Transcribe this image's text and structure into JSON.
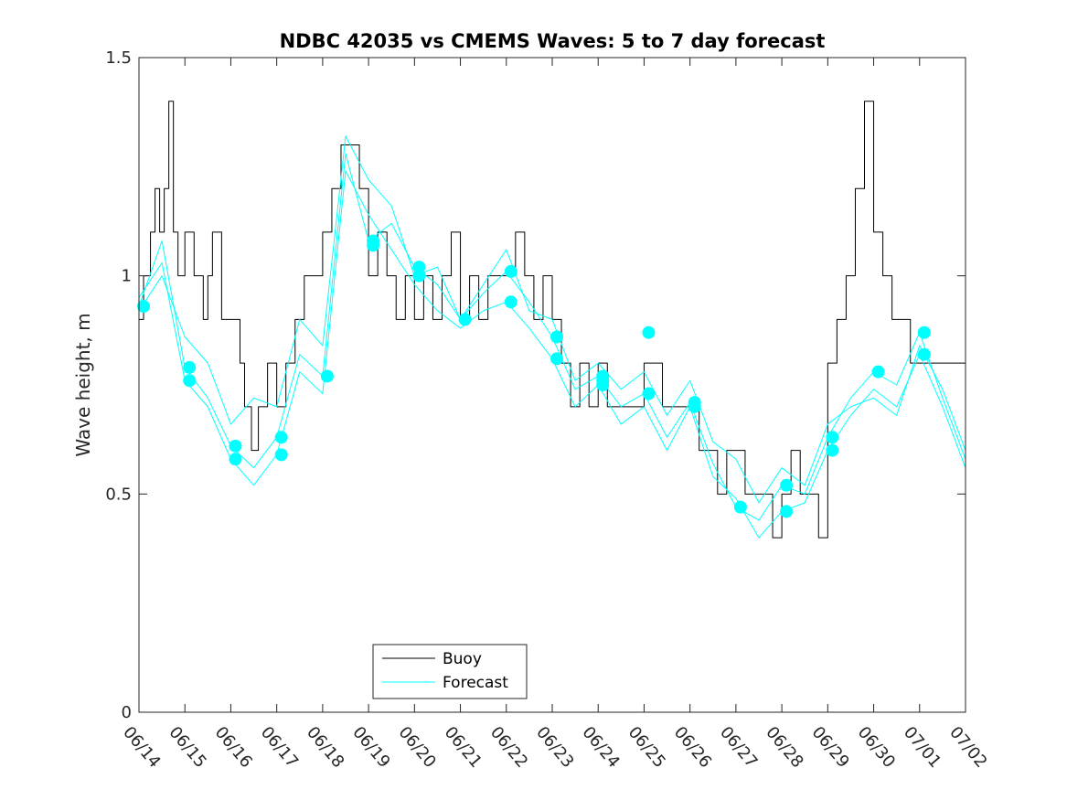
{
  "chart_data": {
    "type": "line",
    "title": "NDBC 42035 vs CMEMS Waves: 5 to 7 day forecast",
    "xlabel": "",
    "ylabel": "Wave height, m",
    "xlim": [
      0,
      18
    ],
    "ylim": [
      0,
      1.5
    ],
    "x_unit": "days since 06/14 00:00",
    "xticks": [
      0,
      1,
      2,
      3,
      4,
      5,
      6,
      7,
      8,
      9,
      10,
      11,
      12,
      13,
      14,
      15,
      16,
      17,
      18
    ],
    "xtick_labels": [
      "06/14",
      "06/15",
      "06/16",
      "06/17",
      "06/18",
      "06/19",
      "06/20",
      "06/21",
      "06/22",
      "06/23",
      "06/24",
      "06/25",
      "06/26",
      "06/27",
      "06/28",
      "06/29",
      "06/30",
      "07/01",
      "07/02"
    ],
    "yticks": [
      0,
      0.5,
      1,
      1.5
    ],
    "ytick_labels": [
      "0",
      "0.5",
      "1",
      "1.5"
    ],
    "grid": false,
    "legend_position": "bottom-center",
    "colors": {
      "buoy": "#000000",
      "forecast": "#00ffff"
    },
    "series": [
      {
        "name": "Buoy",
        "style": "step",
        "color": "#000000",
        "x": [
          0.0,
          0.1,
          0.25,
          0.35,
          0.45,
          0.55,
          0.65,
          0.75,
          0.85,
          1.0,
          1.2,
          1.4,
          1.5,
          1.6,
          1.8,
          2.0,
          2.2,
          2.3,
          2.45,
          2.6,
          2.8,
          3.0,
          3.2,
          3.4,
          3.6,
          3.8,
          4.0,
          4.2,
          4.4,
          4.6,
          4.8,
          5.0,
          5.2,
          5.4,
          5.6,
          5.8,
          6.0,
          6.2,
          6.4,
          6.6,
          6.8,
          7.0,
          7.2,
          7.4,
          7.6,
          7.8,
          8.0,
          8.2,
          8.4,
          8.6,
          8.8,
          9.0,
          9.2,
          9.4,
          9.6,
          9.8,
          10.0,
          10.2,
          10.4,
          10.6,
          10.8,
          11.0,
          11.2,
          11.4,
          11.6,
          11.8,
          12.0,
          12.2,
          12.4,
          12.6,
          12.8,
          13.0,
          13.2,
          13.4,
          13.6,
          13.8,
          14.0,
          14.2,
          14.4,
          14.6,
          14.8,
          15.0,
          15.2,
          15.4,
          15.6,
          15.8,
          16.0,
          16.2,
          16.4,
          16.6,
          16.8,
          17.0,
          17.2,
          17.4,
          17.6,
          17.8,
          18.0
        ],
        "y": [
          0.9,
          1.0,
          1.1,
          1.2,
          1.1,
          1.2,
          1.4,
          1.1,
          1.0,
          1.1,
          1.0,
          0.9,
          1.0,
          1.1,
          0.9,
          0.9,
          0.8,
          0.7,
          0.6,
          0.7,
          0.8,
          0.7,
          0.8,
          0.9,
          1.0,
          1.0,
          1.1,
          1.2,
          1.3,
          1.3,
          1.2,
          1.0,
          1.1,
          1.0,
          0.9,
          1.0,
          0.9,
          1.0,
          0.9,
          1.0,
          1.1,
          0.9,
          1.0,
          0.9,
          1.0,
          1.0,
          1.0,
          1.1,
          1.0,
          0.9,
          1.0,
          0.9,
          0.8,
          0.7,
          0.8,
          0.7,
          0.8,
          0.7,
          0.7,
          0.7,
          0.7,
          0.8,
          0.8,
          0.7,
          0.7,
          0.7,
          0.7,
          0.6,
          0.6,
          0.5,
          0.6,
          0.6,
          0.5,
          0.5,
          0.5,
          0.4,
          0.5,
          0.6,
          0.5,
          0.5,
          0.4,
          0.8,
          0.9,
          1.0,
          1.2,
          1.4,
          1.1,
          1.0,
          0.9,
          0.9,
          0.8,
          0.8,
          0.8,
          0.8,
          0.8,
          0.8,
          0.8
        ]
      },
      {
        "name": "Forecast",
        "style": "line",
        "color": "#00ffff",
        "x": [
          0.0,
          0.5,
          1.0,
          1.5,
          2.0,
          2.5,
          3.0,
          3.5,
          4.0,
          4.5,
          5.0,
          5.5,
          6.0,
          6.5,
          7.0,
          7.5,
          8.0,
          8.5,
          9.0,
          9.5,
          10.0,
          10.5,
          11.0,
          11.5,
          12.0,
          12.5,
          13.0,
          13.5,
          14.0,
          14.5,
          15.0,
          15.5,
          16.0,
          16.5,
          17.0,
          17.5,
          18.0
        ],
        "y": [
          0.93,
          1.08,
          0.79,
          0.72,
          0.61,
          0.56,
          0.63,
          0.82,
          0.77,
          1.28,
          1.08,
          1.12,
          1.02,
          0.98,
          0.9,
          0.96,
          1.01,
          0.94,
          0.86,
          0.74,
          0.77,
          0.7,
          0.73,
          0.63,
          0.71,
          0.57,
          0.47,
          0.44,
          0.52,
          0.5,
          0.63,
          0.72,
          0.78,
          0.75,
          0.87,
          0.72,
          0.58
        ]
      },
      {
        "name": "Forecast",
        "style": "line",
        "color": "#00ffff",
        "x": [
          0.0,
          0.5,
          1.0,
          1.5,
          2.0,
          2.5,
          3.0,
          3.5,
          4.0,
          4.5,
          5.0,
          5.5,
          6.0,
          6.5,
          7.0,
          7.5,
          8.0,
          8.5,
          9.0,
          9.5,
          10.0,
          10.5,
          11.0,
          11.5,
          12.0,
          12.5,
          13.0,
          13.5,
          14.0,
          14.5,
          15.0,
          15.5,
          16.0,
          16.5,
          17.0,
          17.5,
          18.0
        ],
        "y": [
          0.95,
          1.03,
          0.76,
          0.7,
          0.58,
          0.52,
          0.59,
          0.78,
          0.73,
          1.24,
          1.14,
          1.06,
          0.98,
          0.92,
          0.88,
          0.92,
          0.94,
          0.88,
          0.81,
          0.7,
          0.75,
          0.66,
          0.7,
          0.6,
          0.7,
          0.54,
          0.49,
          0.4,
          0.46,
          0.48,
          0.6,
          0.68,
          0.74,
          0.7,
          0.82,
          0.7,
          0.56
        ]
      },
      {
        "name": "Forecast",
        "style": "line",
        "color": "#00ffff",
        "x": [
          0.0,
          0.5,
          1.0,
          1.5,
          2.0,
          2.5,
          3.0,
          3.5,
          4.0,
          4.5,
          5.0,
          5.5,
          6.0,
          6.5,
          7.0,
          7.5,
          8.0,
          8.5,
          9.0,
          9.5,
          10.0,
          10.5,
          11.0,
          11.5,
          12.0,
          12.5,
          13.0,
          13.5,
          14.0,
          14.5,
          15.0,
          15.5,
          16.0,
          16.5,
          17.0,
          17.5,
          18.0
        ],
        "y": [
          0.92,
          1.0,
          0.86,
          0.8,
          0.66,
          0.72,
          0.7,
          0.9,
          0.84,
          1.32,
          1.22,
          1.16,
          1.0,
          1.02,
          0.9,
          0.98,
          1.06,
          0.92,
          0.9,
          0.76,
          0.8,
          0.74,
          0.78,
          0.68,
          0.76,
          0.62,
          0.58,
          0.48,
          0.56,
          0.52,
          0.66,
          0.7,
          0.72,
          0.68,
          0.84,
          0.74,
          0.6
        ]
      }
    ],
    "forecast_markers": {
      "name": "Forecast",
      "color": "#00ffff",
      "x": [
        0.1,
        1.1,
        1.1,
        2.1,
        2.1,
        3.1,
        3.1,
        4.1,
        5.1,
        5.1,
        6.1,
        6.1,
        7.1,
        8.1,
        8.1,
        9.1,
        9.1,
        10.1,
        10.1,
        10.1,
        11.1,
        11.1,
        12.1,
        12.1,
        13.1,
        14.1,
        14.1,
        15.1,
        15.1,
        16.1,
        17.1,
        17.1
      ],
      "y": [
        0.93,
        0.79,
        0.76,
        0.61,
        0.58,
        0.63,
        0.59,
        0.77,
        1.08,
        1.07,
        1.02,
        1.0,
        0.9,
        1.01,
        0.94,
        0.86,
        0.81,
        0.77,
        0.76,
        0.75,
        0.87,
        0.73,
        0.71,
        0.7,
        0.47,
        0.52,
        0.46,
        0.63,
        0.6,
        0.78,
        0.87,
        0.82
      ]
    },
    "legend": [
      {
        "label": "Buoy",
        "color": "#000000"
      },
      {
        "label": "Forecast",
        "color": "#00ffff"
      }
    ]
  }
}
